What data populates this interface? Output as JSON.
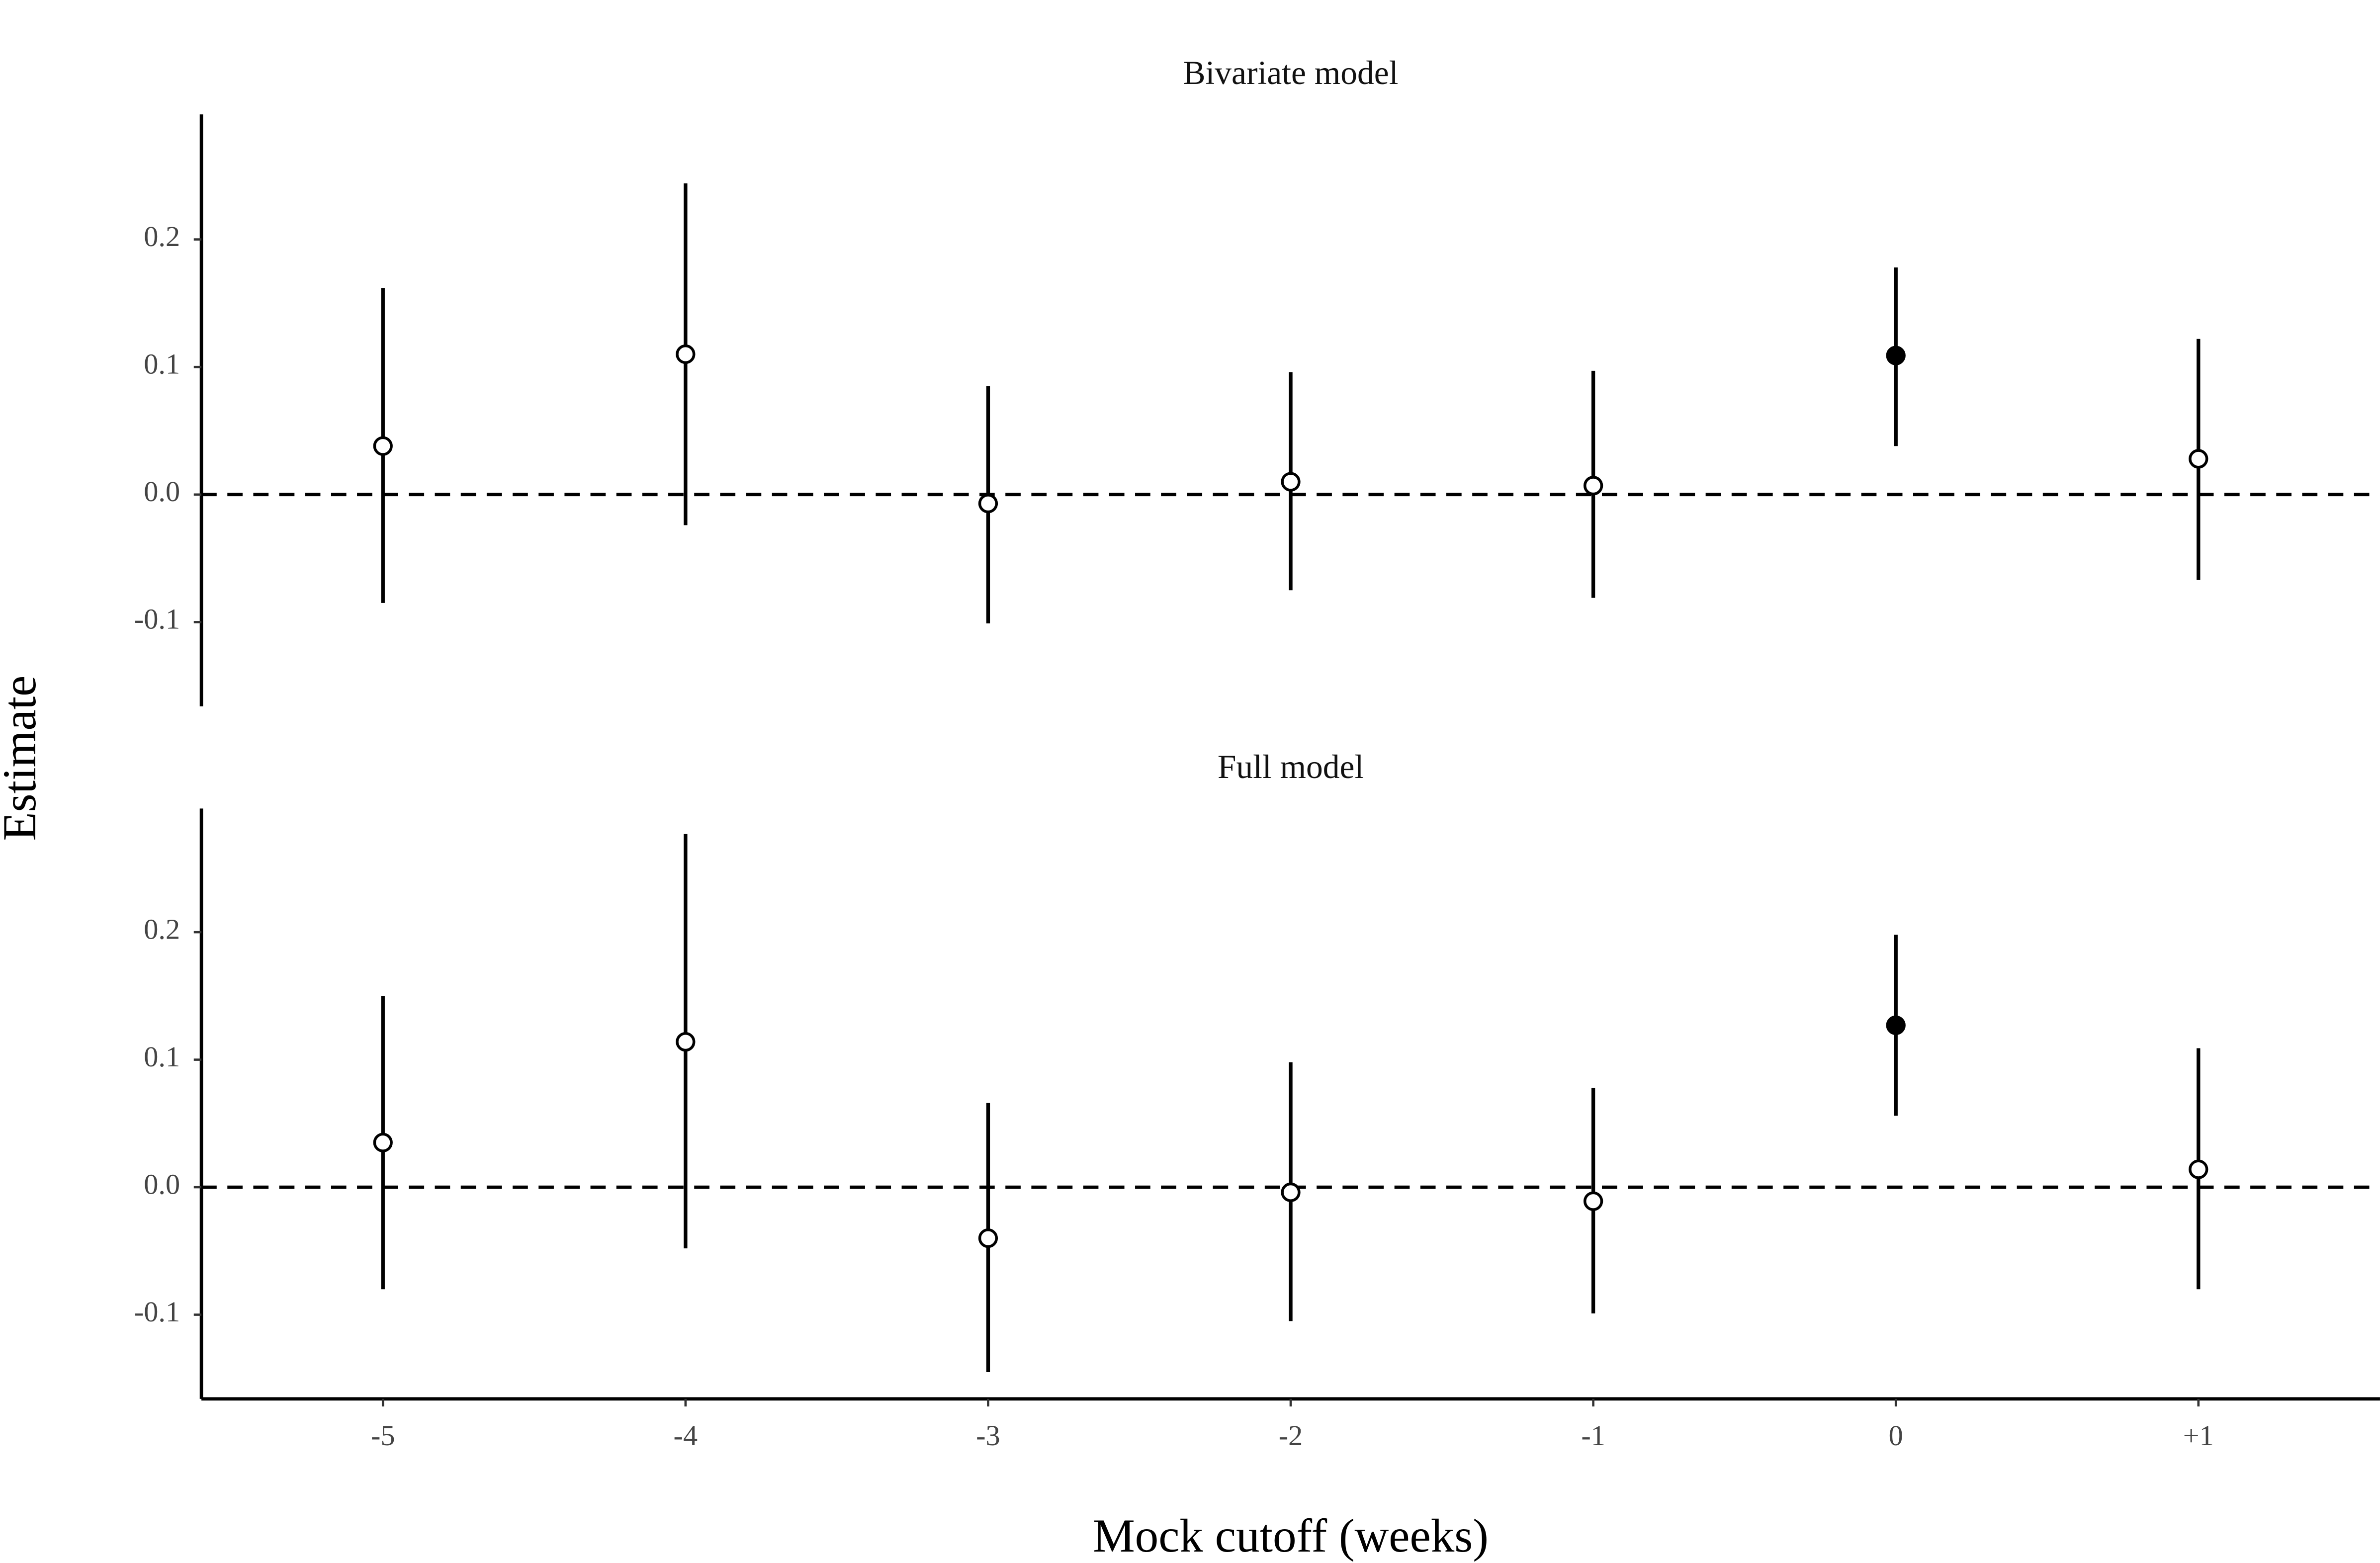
{
  "chart_data": [
    {
      "type": "errorbar",
      "title": "Bivariate model",
      "ylabel": "Estimate",
      "values": [
        0.038,
        0.11,
        -0.007,
        0.01,
        0.007,
        0.109,
        0.028
      ],
      "lower": [
        -0.085,
        -0.024,
        -0.101,
        -0.075,
        -0.081,
        0.038,
        -0.067
      ],
      "upper": [
        0.162,
        0.244,
        0.085,
        0.096,
        0.097,
        0.178,
        0.122
      ],
      "filled": [
        false,
        false,
        false,
        false,
        false,
        true,
        false
      ],
      "color": "#000000",
      "reference_line": 0,
      "ylim": [
        -0.166,
        0.298
      ],
      "yticks": [
        -0.1,
        {
          "value": 0,
          "label": "0.0"
        },
        0.1,
        0.2
      ]
    },
    {
      "type": "errorbar",
      "title": "Full model",
      "xlabel": "Mock cutoff (weeks)",
      "categories": [
        "-5",
        "-4",
        "-3",
        "-2",
        "-1",
        "0",
        "+1"
      ],
      "values": [
        0.035,
        0.114,
        -0.04,
        -0.004,
        -0.011,
        0.127,
        0.014
      ],
      "lower": [
        -0.08,
        -0.048,
        -0.145,
        -0.105,
        -0.099,
        0.056,
        -0.08
      ],
      "upper": [
        0.15,
        0.277,
        0.066,
        0.098,
        0.078,
        0.198,
        0.109
      ],
      "filled": [
        false,
        false,
        false,
        false,
        false,
        true,
        false
      ],
      "color": "#000000",
      "reference_line": 0,
      "ylim": [
        -0.166,
        0.297
      ],
      "yticks": [
        -0.1,
        {
          "value": 0,
          "label": "0.0"
        },
        0.1,
        0.2
      ]
    }
  ]
}
